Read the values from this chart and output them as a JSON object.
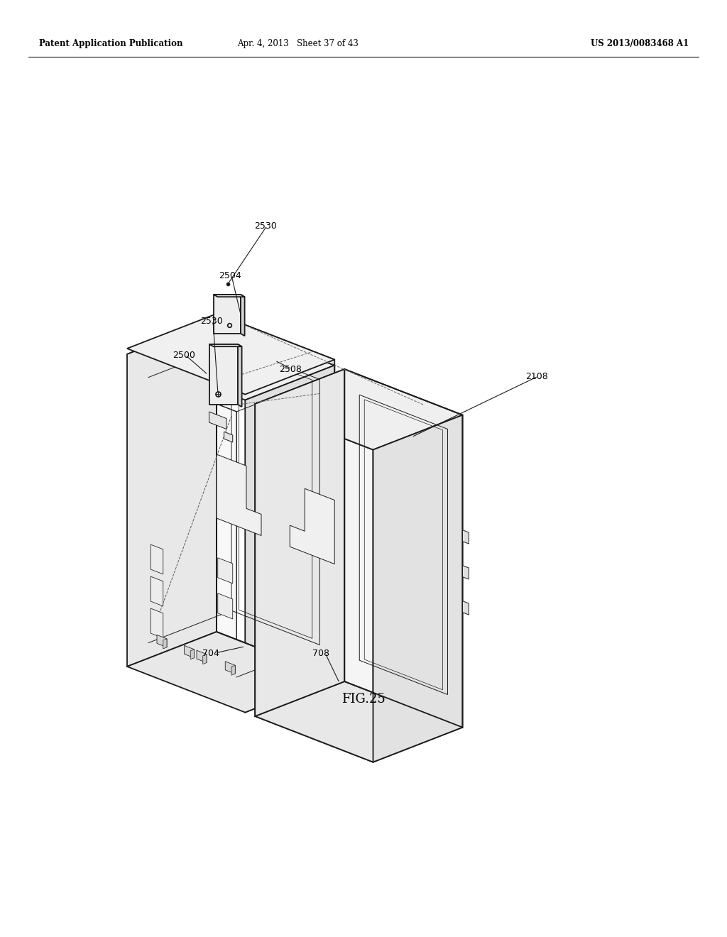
{
  "bg_color": "#ffffff",
  "header_left": "Patent Application Publication",
  "header_center": "Apr. 4, 2013   Sheet 37 of 43",
  "header_right": "US 2013/0083468 A1",
  "figure_label": "FIG.25",
  "line_color": "#1a1a1a",
  "line_width": 1.3,
  "thin_lw": 0.7,
  "label_fontsize": 9.0,
  "header_fontsize": 8.5
}
